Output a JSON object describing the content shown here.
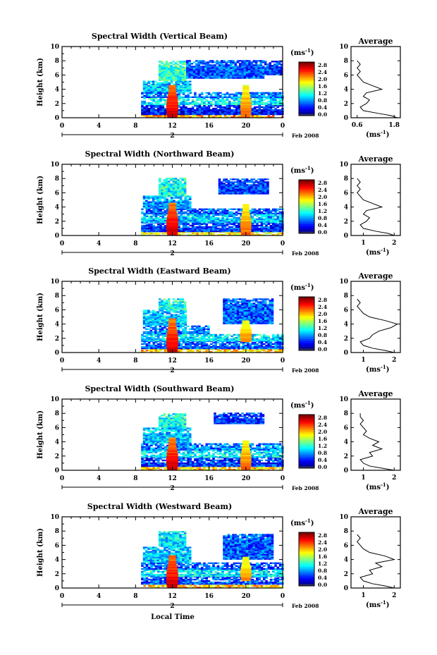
{
  "figure": {
    "x_axis_label": "Local Time",
    "y_axis_label": "Height (km)",
    "date_label": "Feb 2008",
    "day_label": "2",
    "average_title": "Average",
    "average_unit_label": "(ms",
    "average_unit_exp": "-1",
    "colorbar_unit_label": "(ms",
    "colorbar_unit_exp": "-1"
  },
  "chart_data": [
    {
      "type": "heatmap",
      "title": "Spectral Width (Vertical Beam)",
      "ylabel": "Height (km)",
      "x_ticks": [
        "0",
        "4",
        "8",
        "12",
        "16",
        "20",
        "0"
      ],
      "x_tick_hours": [
        0,
        4,
        8,
        12,
        16,
        20,
        24
      ],
      "y_ticks": [
        "0",
        "2",
        "4",
        "6",
        "8",
        "10"
      ],
      "xlim": [
        0,
        24
      ],
      "ylim": [
        0,
        10
      ],
      "colorbar": {
        "ticks": [
          "0.0",
          "0.4",
          "0.8",
          "1.2",
          "1.6",
          "2.0",
          "2.4",
          "2.8"
        ],
        "range": [
          0,
          2.8
        ]
      },
      "echo_regions": [
        {
          "t0": 8.6,
          "t1": 24,
          "h0": 0.0,
          "h1": 0.4,
          "level": 2.0
        },
        {
          "t0": 8.6,
          "t1": 24,
          "h0": 0.4,
          "h1": 1.8,
          "level": 0.4
        },
        {
          "t0": 8.6,
          "t1": 24,
          "h0": 1.8,
          "h1": 2.8,
          "level": 1.0
        },
        {
          "t0": 8.6,
          "t1": 24,
          "h0": 2.8,
          "h1": 3.6,
          "level": 0.7
        },
        {
          "t0": 8.8,
          "t1": 14,
          "h0": 3.6,
          "h1": 5.2,
          "level": 0.9
        },
        {
          "t0": 10.5,
          "t1": 13.5,
          "h0": 5.2,
          "h1": 8.0,
          "level": 1.2
        },
        {
          "t0": 13.5,
          "t1": 22.0,
          "h0": 5.5,
          "h1": 8.0,
          "level": 0.6
        },
        {
          "t0": 22.0,
          "t1": 24,
          "h0": 6.0,
          "h1": 8.0,
          "level": 0.5
        }
      ],
      "convective_columns": [
        {
          "t_center": 12.0,
          "width": 1.3,
          "h0": 0.0,
          "h1": 4.6,
          "level": 2.6
        },
        {
          "t_center": 20.0,
          "width": 1.2,
          "h0": 0.0,
          "h1": 4.5,
          "level": 2.2
        }
      ],
      "average_profile": {
        "x_ticks": [
          "0.6",
          "1.8"
        ],
        "xlim": [
          0.4,
          2.0
        ],
        "ylim": [
          0,
          10
        ],
        "height_km": [
          0.0,
          0.3,
          0.6,
          1.0,
          1.5,
          2.0,
          2.5,
          3.0,
          3.5,
          4.0,
          4.5,
          5.0,
          5.5,
          6.0,
          6.5,
          7.0,
          7.5,
          8.0
        ],
        "width_ms": [
          1.9,
          1.7,
          1.3,
          0.8,
          0.7,
          0.9,
          1.0,
          0.8,
          0.9,
          1.4,
          1.1,
          0.8,
          0.7,
          0.6,
          0.7,
          0.6,
          0.7,
          0.6
        ]
      }
    },
    {
      "type": "heatmap",
      "title": "Spectral Width (Northward Beam)",
      "ylabel": "Height (km)",
      "x_ticks": [
        "0",
        "4",
        "8",
        "12",
        "16",
        "20",
        "0"
      ],
      "x_tick_hours": [
        0,
        4,
        8,
        12,
        16,
        20,
        24
      ],
      "y_ticks": [
        "0",
        "2",
        "4",
        "6",
        "8",
        "10"
      ],
      "xlim": [
        0,
        24
      ],
      "ylim": [
        0,
        10
      ],
      "colorbar": {
        "ticks": [
          "0.0",
          "0.4",
          "0.8",
          "1.2",
          "1.6",
          "2.0",
          "2.4",
          "2.8"
        ],
        "range": [
          0,
          2.8
        ]
      },
      "echo_regions": [
        {
          "t0": 8.6,
          "t1": 24,
          "h0": 0.0,
          "h1": 0.5,
          "level": 1.8
        },
        {
          "t0": 8.6,
          "t1": 24,
          "h0": 0.5,
          "h1": 1.8,
          "level": 0.5
        },
        {
          "t0": 8.6,
          "t1": 24,
          "h0": 1.8,
          "h1": 3.0,
          "level": 0.9
        },
        {
          "t0": 8.6,
          "t1": 24,
          "h0": 3.0,
          "h1": 3.8,
          "level": 0.6
        },
        {
          "t0": 8.8,
          "t1": 14,
          "h0": 3.8,
          "h1": 5.5,
          "level": 0.8
        },
        {
          "t0": 10.5,
          "t1": 13.5,
          "h0": 5.5,
          "h1": 8.0,
          "level": 1.1
        },
        {
          "t0": 17.0,
          "t1": 22.5,
          "h0": 5.8,
          "h1": 8.0,
          "level": 0.5
        }
      ],
      "convective_columns": [
        {
          "t_center": 12.0,
          "width": 1.3,
          "h0": 0.0,
          "h1": 4.6,
          "level": 2.6
        },
        {
          "t_center": 20.0,
          "width": 1.2,
          "h0": 0.0,
          "h1": 4.3,
          "level": 2.2
        }
      ],
      "average_profile": {
        "x_ticks": [
          "1",
          "2"
        ],
        "xlim": [
          0.6,
          2.2
        ],
        "ylim": [
          0,
          10
        ],
        "height_km": [
          0.0,
          0.3,
          0.6,
          1.0,
          1.5,
          2.0,
          2.5,
          3.0,
          3.5,
          4.0,
          4.5,
          5.0,
          5.5,
          6.0,
          6.5,
          7.0,
          7.5,
          8.0
        ],
        "width_ms": [
          2.0,
          1.8,
          1.4,
          1.0,
          0.9,
          1.1,
          1.2,
          1.0,
          1.1,
          1.6,
          1.3,
          1.0,
          0.9,
          0.8,
          0.9,
          0.8,
          0.9,
          0.8
        ]
      }
    },
    {
      "type": "heatmap",
      "title": "Spectral Width (Eastward Beam)",
      "ylabel": "Height (km)",
      "x_ticks": [
        "0",
        "4",
        "8",
        "12",
        "16",
        "20",
        "0"
      ],
      "x_tick_hours": [
        0,
        4,
        8,
        12,
        16,
        20,
        24
      ],
      "y_ticks": [
        "0",
        "2",
        "4",
        "6",
        "8",
        "10"
      ],
      "xlim": [
        0,
        24
      ],
      "ylim": [
        0,
        10
      ],
      "colorbar": {
        "ticks": [
          "0.0",
          "0.4",
          "0.8",
          "1.2",
          "1.6",
          "2.0",
          "2.4",
          "2.8"
        ],
        "range": [
          0,
          2.8
        ]
      },
      "echo_regions": [
        {
          "t0": 8.6,
          "t1": 24,
          "h0": 0.0,
          "h1": 0.5,
          "level": 1.9
        },
        {
          "t0": 8.6,
          "t1": 24,
          "h0": 0.5,
          "h1": 1.6,
          "level": 0.6
        },
        {
          "t0": 8.6,
          "t1": 24,
          "h0": 1.6,
          "h1": 2.6,
          "level": 1.0
        },
        {
          "t0": 8.8,
          "t1": 16,
          "h0": 2.6,
          "h1": 3.8,
          "level": 0.7
        },
        {
          "t0": 8.8,
          "t1": 13.5,
          "h0": 3.8,
          "h1": 6.0,
          "level": 0.9
        },
        {
          "t0": 10.5,
          "t1": 13.5,
          "h0": 6.0,
          "h1": 7.5,
          "level": 1.1
        },
        {
          "t0": 17.5,
          "t1": 23.0,
          "h0": 4.0,
          "h1": 7.5,
          "level": 0.6
        }
      ],
      "convective_columns": [
        {
          "t_center": 12.0,
          "width": 1.3,
          "h0": 0.0,
          "h1": 4.8,
          "level": 2.6
        },
        {
          "t_center": 20.0,
          "width": 1.3,
          "h0": 1.5,
          "h1": 4.5,
          "level": 2.1
        }
      ],
      "average_profile": {
        "x_ticks": [
          "1",
          "2"
        ],
        "xlim": [
          0.6,
          2.2
        ],
        "ylim": [
          0,
          10
        ],
        "height_km": [
          0.0,
          0.3,
          0.6,
          1.0,
          1.5,
          2.0,
          2.5,
          3.0,
          3.5,
          4.0,
          4.5,
          5.0,
          5.5,
          6.0,
          6.5,
          7.0,
          7.5
        ],
        "width_ms": [
          2.0,
          1.7,
          1.3,
          1.0,
          0.9,
          1.2,
          1.3,
          1.5,
          1.9,
          2.1,
          1.7,
          1.2,
          1.0,
          0.9,
          0.8,
          0.9,
          0.8
        ]
      }
    },
    {
      "type": "heatmap",
      "title": "Spectral Width (Southward Beam)",
      "ylabel": "Height (km)",
      "x_ticks": [
        "0",
        "4",
        "8",
        "12",
        "16",
        "20",
        "0"
      ],
      "x_tick_hours": [
        0,
        4,
        8,
        12,
        16,
        20,
        24
      ],
      "y_ticks": [
        "0",
        "2",
        "4",
        "6",
        "8",
        "10"
      ],
      "xlim": [
        0,
        24
      ],
      "ylim": [
        0,
        10
      ],
      "colorbar": {
        "ticks": [
          "0.0",
          "0.4",
          "0.8",
          "1.2",
          "1.6",
          "2.0",
          "2.4",
          "2.8"
        ],
        "range": [
          0,
          2.8
        ]
      },
      "echo_regions": [
        {
          "t0": 8.6,
          "t1": 24,
          "h0": 0.0,
          "h1": 0.5,
          "level": 1.9
        },
        {
          "t0": 8.6,
          "t1": 24,
          "h0": 0.5,
          "h1": 1.8,
          "level": 0.5
        },
        {
          "t0": 8.6,
          "t1": 24,
          "h0": 1.8,
          "h1": 2.8,
          "level": 1.0
        },
        {
          "t0": 8.6,
          "t1": 24,
          "h0": 2.8,
          "h1": 3.8,
          "level": 0.7
        },
        {
          "t0": 8.8,
          "t1": 14,
          "h0": 3.8,
          "h1": 6.0,
          "level": 0.9
        },
        {
          "t0": 10.5,
          "t1": 13.5,
          "h0": 6.0,
          "h1": 8.0,
          "level": 1.1
        },
        {
          "t0": 16.5,
          "t1": 22.0,
          "h0": 6.5,
          "h1": 8.0,
          "level": 0.5
        }
      ],
      "convective_columns": [
        {
          "t_center": 12.0,
          "width": 1.3,
          "h0": 0.0,
          "h1": 4.5,
          "level": 2.6
        },
        {
          "t_center": 20.0,
          "width": 1.2,
          "h0": 0.0,
          "h1": 4.2,
          "level": 2.2
        }
      ],
      "average_profile": {
        "x_ticks": [
          "1",
          "2"
        ],
        "xlim": [
          0.6,
          2.2
        ],
        "ylim": [
          0,
          10
        ],
        "height_km": [
          0.0,
          0.3,
          0.6,
          1.0,
          1.5,
          2.0,
          2.5,
          3.0,
          3.5,
          4.0,
          4.5,
          5.0,
          5.5,
          6.0,
          6.5,
          7.0,
          7.5,
          8.0
        ],
        "width_ms": [
          2.0,
          1.6,
          1.2,
          1.0,
          0.9,
          1.3,
          1.2,
          1.6,
          1.3,
          1.5,
          1.2,
          1.0,
          1.1,
          1.0,
          0.9,
          1.0,
          0.9,
          0.9
        ]
      }
    },
    {
      "type": "heatmap",
      "title": "Spectral Width (Westward Beam)",
      "ylabel": "Height (km)",
      "x_ticks": [
        "0",
        "4",
        "8",
        "12",
        "16",
        "20",
        "0"
      ],
      "x_tick_hours": [
        0,
        4,
        8,
        12,
        16,
        20,
        24
      ],
      "y_ticks": [
        "0",
        "2",
        "4",
        "6",
        "8",
        "10"
      ],
      "xlim": [
        0,
        24
      ],
      "ylim": [
        0,
        10
      ],
      "colorbar": {
        "ticks": [
          "0.0",
          "0.4",
          "0.8",
          "1.2",
          "1.6",
          "2.0",
          "2.4",
          "2.8"
        ],
        "range": [
          0,
          2.8
        ]
      },
      "echo_regions": [
        {
          "t0": 8.6,
          "t1": 24,
          "h0": 0.0,
          "h1": 0.5,
          "level": 1.9
        },
        {
          "t0": 8.6,
          "t1": 24,
          "h0": 0.5,
          "h1": 1.6,
          "level": 0.6
        },
        {
          "t0": 8.6,
          "t1": 24,
          "h0": 1.6,
          "h1": 2.6,
          "level": 1.0
        },
        {
          "t0": 8.6,
          "t1": 24,
          "h0": 2.6,
          "h1": 3.6,
          "level": 0.6
        },
        {
          "t0": 8.8,
          "t1": 14,
          "h0": 3.6,
          "h1": 5.8,
          "level": 0.9
        },
        {
          "t0": 10.5,
          "t1": 13.5,
          "h0": 5.8,
          "h1": 8.0,
          "level": 1.0
        },
        {
          "t0": 17.5,
          "t1": 23.0,
          "h0": 4.0,
          "h1": 7.5,
          "level": 0.6
        }
      ],
      "convective_columns": [
        {
          "t_center": 12.0,
          "width": 1.3,
          "h0": 0.0,
          "h1": 4.6,
          "level": 2.6
        },
        {
          "t_center": 20.0,
          "width": 1.2,
          "h0": 1.0,
          "h1": 4.4,
          "level": 2.1
        }
      ],
      "average_profile": {
        "x_ticks": [
          "1",
          "2"
        ],
        "xlim": [
          0.6,
          2.2
        ],
        "ylim": [
          0,
          10
        ],
        "height_km": [
          0.0,
          0.3,
          0.6,
          1.0,
          1.5,
          2.0,
          2.5,
          3.0,
          3.5,
          4.0,
          4.5,
          5.0,
          5.5,
          6.0,
          6.5,
          7.0,
          7.5
        ],
        "width_ms": [
          2.0,
          1.7,
          1.3,
          1.0,
          0.9,
          1.3,
          1.2,
          1.6,
          1.4,
          2.0,
          1.7,
          1.2,
          1.0,
          0.9,
          0.8,
          0.9,
          0.8
        ]
      }
    }
  ]
}
